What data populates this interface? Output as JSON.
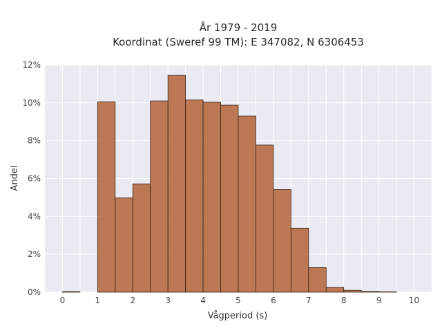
{
  "chart_data": {
    "type": "bar",
    "title_line1": "År 1979 - 2019",
    "title_line2": "Koordinat (Sweref 99 TM): E 347082, N 6306453",
    "xlabel": "Vågperiod (s)",
    "ylabel": "Andel",
    "xlim": [
      -0.5,
      10.5
    ],
    "ylim": [
      0,
      12
    ],
    "x_ticks": [
      "0",
      "1",
      "2",
      "3",
      "4",
      "5",
      "6",
      "7",
      "8",
      "9",
      "10"
    ],
    "y_ticks": [
      "0%",
      "2%",
      "4%",
      "6%",
      "8%",
      "10%",
      "12%"
    ],
    "bin_width": 0.5,
    "bins": [
      {
        "start": 0.0,
        "value": 0.03
      },
      {
        "start": 0.5,
        "value": 0.0
      },
      {
        "start": 1.0,
        "value": 10.05
      },
      {
        "start": 1.5,
        "value": 4.98
      },
      {
        "start": 2.0,
        "value": 5.72
      },
      {
        "start": 2.5,
        "value": 10.1
      },
      {
        "start": 3.0,
        "value": 11.45
      },
      {
        "start": 3.5,
        "value": 10.15
      },
      {
        "start": 4.0,
        "value": 10.03
      },
      {
        "start": 4.5,
        "value": 9.88
      },
      {
        "start": 5.0,
        "value": 9.3
      },
      {
        "start": 5.5,
        "value": 7.77
      },
      {
        "start": 6.0,
        "value": 5.42
      },
      {
        "start": 6.5,
        "value": 3.38
      },
      {
        "start": 7.0,
        "value": 1.3
      },
      {
        "start": 7.5,
        "value": 0.25
      },
      {
        "start": 8.0,
        "value": 0.1
      },
      {
        "start": 8.5,
        "value": 0.04
      },
      {
        "start": 9.0,
        "value": 0.02
      }
    ],
    "grid": true,
    "colors": {
      "bar": "#b5673e",
      "bar_edge": "#3a2418",
      "plot_bg": "#eaeaf2",
      "grid": "#ffffff"
    }
  }
}
